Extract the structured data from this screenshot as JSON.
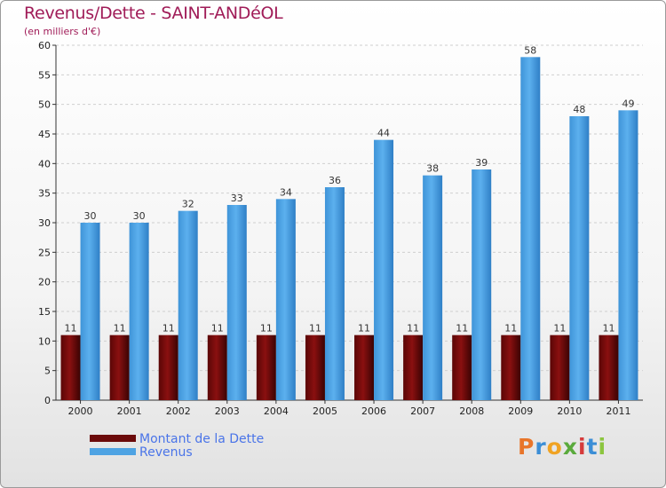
{
  "chart_data": {
    "type": "bar",
    "title": "Revenus/Dette - SAINT-ANDéOL",
    "subtitle": "(en milliers d'€)",
    "categories": [
      "2000",
      "2001",
      "2002",
      "2003",
      "2004",
      "2005",
      "2006",
      "2007",
      "2008",
      "2009",
      "2010",
      "2011"
    ],
    "series": [
      {
        "name": "Montant de la Dette",
        "color": "#6b0a0a",
        "values": [
          11,
          11,
          11,
          11,
          11,
          11,
          11,
          11,
          11,
          11,
          11,
          11
        ]
      },
      {
        "name": "Revenus",
        "color": "#4ea3e3",
        "values": [
          30,
          30,
          32,
          33,
          34,
          36,
          44,
          38,
          39,
          58,
          48,
          49
        ]
      }
    ],
    "ylim": [
      0,
      60
    ],
    "yticks": [
      "0",
      "5",
      "10",
      "15",
      "20",
      "25",
      "30",
      "35",
      "40",
      "45",
      "50",
      "55",
      "60"
    ],
    "grid": true,
    "legend_position": "bottom-left",
    "data_labels": true
  },
  "logo": {
    "letters": [
      "P",
      "r",
      "o",
      "x",
      "i",
      "t",
      "i"
    ],
    "colors": [
      "#e8752a",
      "#3b8ed6",
      "#f0a323",
      "#5aaa3c",
      "#d63b3b",
      "#3b8ed6",
      "#8cc63f"
    ]
  }
}
